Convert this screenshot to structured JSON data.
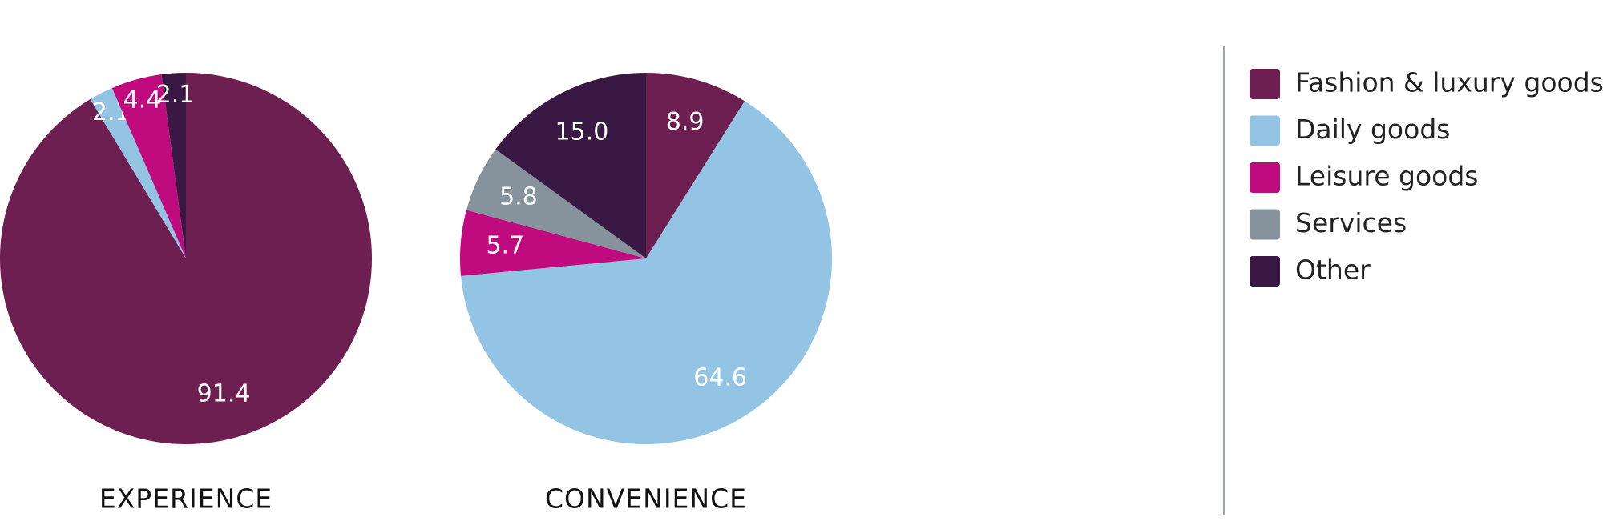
{
  "chart_data": {
    "type": "pie",
    "categories": [
      "Fashion & luxury goods",
      "Daily goods",
      "Leisure goods",
      "Services",
      "Other"
    ],
    "colors": [
      "#6e1f52",
      "#93c4e3",
      "#bf0b7e",
      "#86939c",
      "#3a1844"
    ],
    "pies": [
      {
        "title": "EXPERIENCE",
        "values": [
          91.4,
          2.1,
          4.4,
          null,
          2.1
        ],
        "value_labels": [
          "91.4",
          "2.1",
          "4.4",
          null,
          "2.1"
        ]
      },
      {
        "title": "CONVENIENCE",
        "values": [
          8.9,
          64.6,
          5.7,
          5.8,
          15.0
        ],
        "value_labels": [
          "8.9",
          "64.6",
          "5.7",
          "5.8",
          "15.0"
        ]
      }
    ]
  }
}
